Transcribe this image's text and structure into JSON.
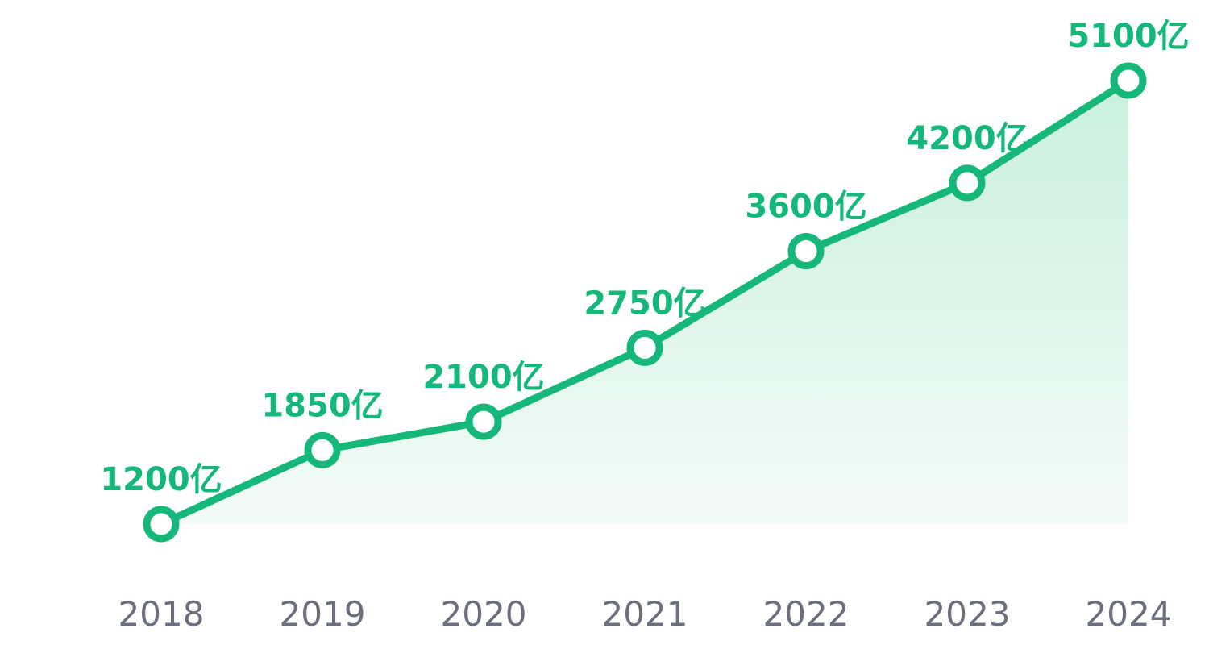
{
  "chart_data": {
    "type": "area",
    "categories": [
      "2018",
      "2019",
      "2020",
      "2021",
      "2022",
      "2023",
      "2024"
    ],
    "series": [
      {
        "values": [
          1200,
          1850,
          2100,
          2750,
          3600,
          4200,
          5100
        ],
        "data_labels": [
          "1200亿",
          "1850亿",
          "2100亿",
          "2750亿",
          "3600亿",
          "4200亿",
          "5100亿"
        ]
      }
    ],
    "title": "",
    "xlabel": "",
    "ylabel": "",
    "ylim": [
      1200,
      5100
    ],
    "grid": false,
    "legend": "none",
    "colors": {
      "line": "#16b87a",
      "area_top": "#c9f0dd",
      "area_bottom": "#f3fbf7",
      "marker_fill": "#ffffff",
      "data_label": "#16b87a",
      "tick_label": "#6b6f7e"
    }
  }
}
